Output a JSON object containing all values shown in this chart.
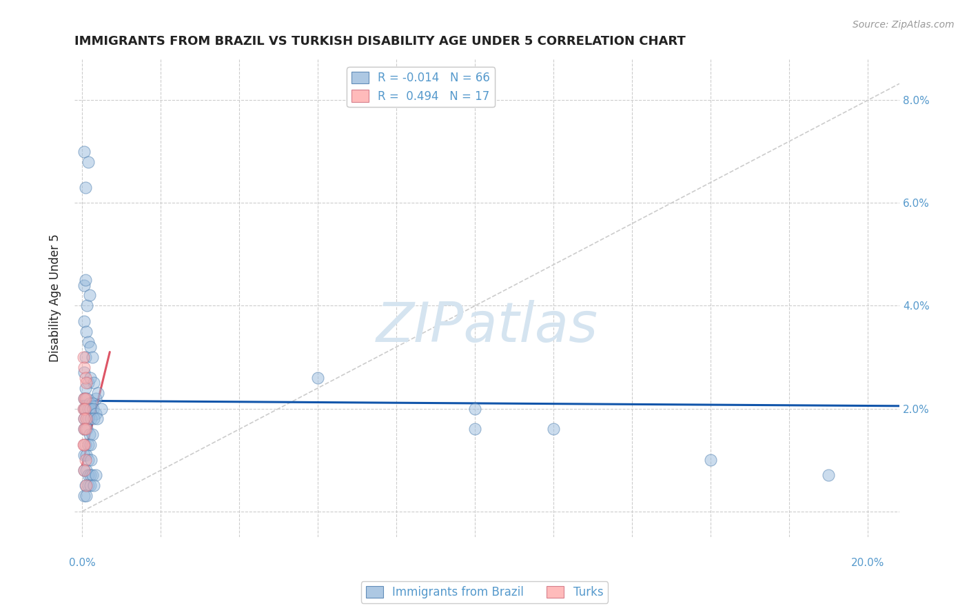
{
  "title": "IMMIGRANTS FROM BRAZIL VS TURKISH DISABILITY AGE UNDER 5 CORRELATION CHART",
  "source": "Source: ZipAtlas.com",
  "ylabel": "Disability Age Under 5",
  "watermark": "ZIPatlas",
  "xlim": [
    -0.002,
    0.208
  ],
  "ylim": [
    -0.005,
    0.088
  ],
  "xticks": [
    0.0,
    0.02,
    0.04,
    0.06,
    0.08,
    0.1,
    0.12,
    0.14,
    0.16,
    0.18,
    0.2
  ],
  "xtick_show": [
    0.0,
    0.2
  ],
  "xtick_labels_show": [
    "0.0%",
    "20.0%"
  ],
  "yticks": [
    0.0,
    0.02,
    0.04,
    0.06,
    0.08
  ],
  "ytick_labels": [
    "",
    "2.0%",
    "4.0%",
    "6.0%",
    "8.0%"
  ],
  "grid_color": "#cccccc",
  "blue_color": "#99bbdd",
  "pink_color": "#ffaaaa",
  "blue_edge_color": "#4477aa",
  "pink_edge_color": "#cc6677",
  "blue_R": "-0.014",
  "blue_N": "66",
  "pink_R": "0.494",
  "pink_N": "17",
  "blue_scatter": [
    [
      0.0005,
      0.07
    ],
    [
      0.0015,
      0.068
    ],
    [
      0.0008,
      0.063
    ],
    [
      0.0005,
      0.044
    ],
    [
      0.0008,
      0.045
    ],
    [
      0.0012,
      0.04
    ],
    [
      0.0018,
      0.042
    ],
    [
      0.0005,
      0.037
    ],
    [
      0.001,
      0.035
    ],
    [
      0.0015,
      0.033
    ],
    [
      0.002,
      0.032
    ],
    [
      0.0008,
      0.03
    ],
    [
      0.0025,
      0.03
    ],
    [
      0.0005,
      0.027
    ],
    [
      0.0015,
      0.025
    ],
    [
      0.002,
      0.026
    ],
    [
      0.003,
      0.025
    ],
    [
      0.0008,
      0.024
    ],
    [
      0.0035,
      0.022
    ],
    [
      0.0005,
      0.022
    ],
    [
      0.0012,
      0.022
    ],
    [
      0.0018,
      0.021
    ],
    [
      0.0025,
      0.021
    ],
    [
      0.004,
      0.023
    ],
    [
      0.0005,
      0.02
    ],
    [
      0.001,
      0.02
    ],
    [
      0.0015,
      0.02
    ],
    [
      0.002,
      0.02
    ],
    [
      0.0028,
      0.02
    ],
    [
      0.0035,
      0.019
    ],
    [
      0.0048,
      0.02
    ],
    [
      0.0005,
      0.018
    ],
    [
      0.001,
      0.018
    ],
    [
      0.0015,
      0.018
    ],
    [
      0.0022,
      0.018
    ],
    [
      0.003,
      0.018
    ],
    [
      0.0038,
      0.018
    ],
    [
      0.0005,
      0.016
    ],
    [
      0.0012,
      0.016
    ],
    [
      0.0018,
      0.015
    ],
    [
      0.0025,
      0.015
    ],
    [
      0.0008,
      0.013
    ],
    [
      0.0015,
      0.013
    ],
    [
      0.002,
      0.013
    ],
    [
      0.0005,
      0.011
    ],
    [
      0.001,
      0.011
    ],
    [
      0.0015,
      0.01
    ],
    [
      0.0022,
      0.01
    ],
    [
      0.0005,
      0.008
    ],
    [
      0.001,
      0.008
    ],
    [
      0.0015,
      0.007
    ],
    [
      0.002,
      0.007
    ],
    [
      0.0025,
      0.007
    ],
    [
      0.0035,
      0.007
    ],
    [
      0.0008,
      0.005
    ],
    [
      0.0015,
      0.005
    ],
    [
      0.002,
      0.005
    ],
    [
      0.003,
      0.005
    ],
    [
      0.0005,
      0.003
    ],
    [
      0.001,
      0.003
    ],
    [
      0.06,
      0.026
    ],
    [
      0.1,
      0.02
    ],
    [
      0.12,
      0.016
    ],
    [
      0.19,
      0.007
    ],
    [
      0.16,
      0.01
    ],
    [
      0.1,
      0.016
    ]
  ],
  "pink_scatter": [
    [
      0.0003,
      0.03
    ],
    [
      0.0005,
      0.028
    ],
    [
      0.0008,
      0.026
    ],
    [
      0.001,
      0.025
    ],
    [
      0.0005,
      0.022
    ],
    [
      0.0008,
      0.022
    ],
    [
      0.0003,
      0.02
    ],
    [
      0.0006,
      0.02
    ],
    [
      0.001,
      0.018
    ],
    [
      0.0004,
      0.018
    ],
    [
      0.0005,
      0.016
    ],
    [
      0.0008,
      0.016
    ],
    [
      0.0003,
      0.013
    ],
    [
      0.0005,
      0.013
    ],
    [
      0.0008,
      0.01
    ],
    [
      0.0005,
      0.008
    ],
    [
      0.001,
      0.005
    ]
  ],
  "blue_line_x": [
    0.0,
    0.208
  ],
  "blue_line_y": [
    0.0215,
    0.0205
  ],
  "pink_line_x": [
    0.0,
    0.007
  ],
  "pink_line_y": [
    0.009,
    0.031
  ],
  "ref_line_x": [
    0.0,
    0.208
  ],
  "ref_line_y": [
    0.0,
    0.0832
  ],
  "ref_color": "#cccccc",
  "blue_line_color": "#1155aa",
  "pink_line_color": "#dd5566",
  "watermark_color": "#d5e4f0",
  "background_color": "#ffffff",
  "title_color": "#222222",
  "tick_label_color": "#5599cc",
  "legend_text_color": "#5599cc",
  "title_fontsize": 13,
  "source_fontsize": 10,
  "ylabel_fontsize": 12,
  "tick_fontsize": 11,
  "legend_fontsize": 12,
  "scatter_size": 150,
  "scatter_alpha": 0.5
}
